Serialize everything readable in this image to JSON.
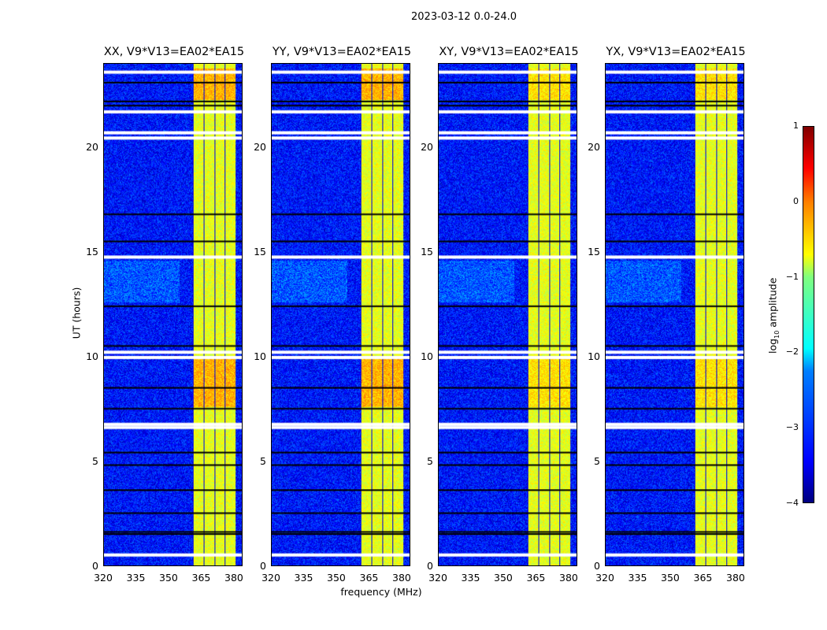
{
  "chart_data": {
    "type": "heatmap",
    "title": "2023-03-12 0.0-24.0",
    "xlabel": "frequency (MHz)",
    "ylabel": "UT (hours)",
    "xlim": [
      320,
      384
    ],
    "ylim": [
      0,
      24
    ],
    "xticks": [
      "320",
      "335",
      "350",
      "365",
      "380"
    ],
    "yticks": [
      "0",
      "5",
      "10",
      "15",
      "20"
    ],
    "panels": [
      {
        "title": "XX, V9*V13=EA02*EA15"
      },
      {
        "title": "YY, V9*V13=EA02*EA15"
      },
      {
        "title": "XY, V9*V13=EA02*EA15"
      },
      {
        "title": "YX, V9*V13=EA02*EA15"
      }
    ],
    "colorbar": {
      "label": "log10 amplitude",
      "label_main": "log",
      "label_sub": "10",
      "label_tail": " amplitude",
      "range": [
        -4,
        1
      ],
      "ticks": [
        "1",
        "0",
        "−1",
        "−2",
        "−3",
        "−4"
      ],
      "colormap": "jet"
    },
    "signal_band_mhz": [
      361,
      381
    ],
    "background_level": -3.3,
    "band_level": -1.0,
    "flagged_hours_white": [
      0.5,
      6.6,
      6.75,
      9.95,
      10.2,
      14.75,
      20.45,
      20.7,
      21.7,
      23.6
    ],
    "dropout_hours_black": [
      1.5,
      1.6,
      2.5,
      3.6,
      4.8,
      5.4,
      7.5,
      8.5,
      10.5,
      12.4,
      15.5,
      16.8,
      22.0,
      22.2,
      23.1
    ]
  }
}
